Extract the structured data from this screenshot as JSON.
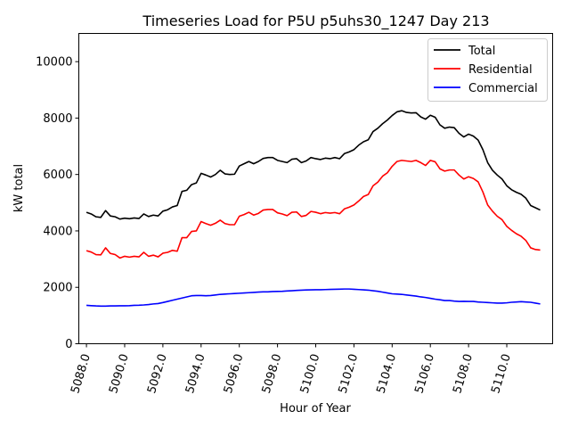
{
  "chart_data": {
    "type": "line",
    "title": "Timeseries Load for P5U p5uhs30_1247  Day 213",
    "xlabel": "Hour of Year",
    "ylabel": "kW total",
    "xlim": [
      5087.6,
      5112.4
    ],
    "ylim": [
      0,
      11000
    ],
    "xticks": [
      5088,
      5090,
      5092,
      5094,
      5096,
      5098,
      5100,
      5102,
      5104,
      5106,
      5108,
      5110
    ],
    "xtick_labels": [
      "5088.0",
      "5090.0",
      "5092.0",
      "5094.0",
      "5096.0",
      "5098.0",
      "5100.0",
      "5102.0",
      "5104.0",
      "5106.0",
      "5108.0",
      "5110.0"
    ],
    "yticks": [
      0,
      2000,
      4000,
      6000,
      8000,
      10000
    ],
    "ytick_labels": [
      "0",
      "2000",
      "4000",
      "6000",
      "8000",
      "10000"
    ],
    "grid": false,
    "legend_position": "top-right",
    "x_start": 5088.0,
    "x_step": 0.25,
    "series": [
      {
        "name": "Total",
        "color": "#000000",
        "values": [
          4660,
          4600,
          4500,
          4480,
          4720,
          4530,
          4500,
          4420,
          4450,
          4430,
          4460,
          4440,
          4600,
          4510,
          4560,
          4530,
          4700,
          4750,
          4850,
          4900,
          5400,
          5440,
          5640,
          5700,
          6040,
          5980,
          5910,
          6000,
          6150,
          6020,
          6000,
          6010,
          6300,
          6380,
          6460,
          6380,
          6460,
          6570,
          6600,
          6600,
          6500,
          6460,
          6420,
          6540,
          6560,
          6420,
          6480,
          6600,
          6560,
          6530,
          6580,
          6560,
          6600,
          6560,
          6740,
          6800,
          6880,
          7040,
          7160,
          7230,
          7520,
          7640,
          7800,
          7930,
          8090,
          8220,
          8260,
          8200,
          8180,
          8190,
          8040,
          7960,
          8100,
          8030,
          7760,
          7640,
          7680,
          7660,
          7460,
          7330,
          7430,
          7360,
          7220,
          6880,
          6420,
          6150,
          5980,
          5840,
          5600,
          5460,
          5370,
          5300,
          5160,
          4900,
          4820,
          4740
        ]
      },
      {
        "name": "Residential",
        "color": "#ff0000",
        "values": [
          3300,
          3250,
          3160,
          3150,
          3400,
          3200,
          3160,
          3040,
          3100,
          3070,
          3100,
          3080,
          3240,
          3100,
          3140,
          3080,
          3210,
          3240,
          3310,
          3280,
          3760,
          3760,
          3980,
          4000,
          4330,
          4260,
          4200,
          4270,
          4380,
          4260,
          4220,
          4220,
          4520,
          4580,
          4660,
          4560,
          4620,
          4740,
          4760,
          4760,
          4640,
          4600,
          4540,
          4660,
          4670,
          4510,
          4550,
          4690,
          4660,
          4610,
          4650,
          4630,
          4650,
          4610,
          4780,
          4840,
          4920,
          5060,
          5220,
          5290,
          5600,
          5730,
          5940,
          6060,
          6290,
          6460,
          6500,
          6480,
          6460,
          6500,
          6420,
          6320,
          6500,
          6450,
          6200,
          6120,
          6160,
          6160,
          5980,
          5840,
          5920,
          5860,
          5740,
          5380,
          4920,
          4700,
          4520,
          4400,
          4160,
          4020,
          3900,
          3810,
          3660,
          3400,
          3340,
          3320
        ]
      },
      {
        "name": "Commercial",
        "color": "#0000ff",
        "values": [
          1360,
          1350,
          1340,
          1335,
          1335,
          1340,
          1340,
          1345,
          1345,
          1350,
          1360,
          1365,
          1375,
          1390,
          1410,
          1425,
          1460,
          1500,
          1540,
          1580,
          1620,
          1660,
          1700,
          1710,
          1710,
          1700,
          1710,
          1730,
          1750,
          1760,
          1770,
          1780,
          1790,
          1800,
          1810,
          1820,
          1830,
          1840,
          1840,
          1850,
          1855,
          1860,
          1870,
          1880,
          1890,
          1900,
          1905,
          1910,
          1915,
          1915,
          1920,
          1925,
          1930,
          1935,
          1940,
          1940,
          1930,
          1920,
          1910,
          1900,
          1880,
          1860,
          1830,
          1800,
          1770,
          1760,
          1750,
          1730,
          1710,
          1690,
          1660,
          1640,
          1610,
          1580,
          1560,
          1530,
          1530,
          1510,
          1500,
          1505,
          1500,
          1500,
          1480,
          1470,
          1460,
          1450,
          1440,
          1440,
          1450,
          1470,
          1480,
          1490,
          1480,
          1470,
          1440,
          1410
        ]
      }
    ]
  }
}
